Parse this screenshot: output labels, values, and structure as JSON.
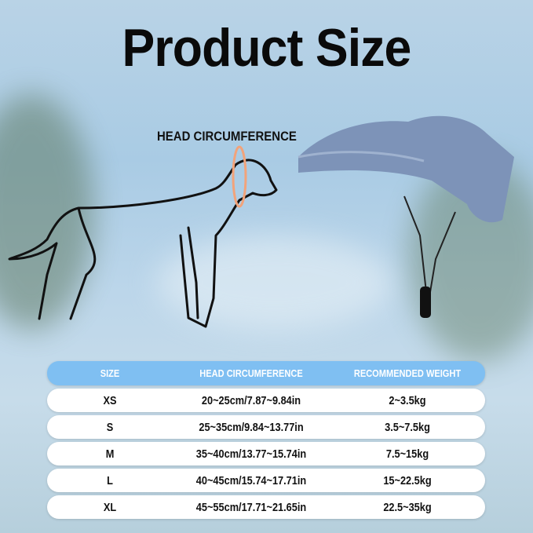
{
  "title": "Product Size",
  "diagram": {
    "head_label": "HEAD CIRCUMFERENCE"
  },
  "table": {
    "headers": [
      "SIZE",
      "HEAD CIRCUMFERENCE",
      "RECOMMENDED WEIGHT"
    ],
    "rows": [
      [
        "XS",
        "20~25cm/7.87~9.84in",
        "2~3.5kg"
      ],
      [
        "S",
        "25~35cm/9.84~13.77in",
        "3.5~7.5kg"
      ],
      [
        "M",
        "35~40cm/13.77~15.74in",
        "7.5~15kg"
      ],
      [
        "L",
        "40~45cm/15.74~17.71in",
        "15~22.5kg"
      ],
      [
        "XL",
        "45~55cm/17.71~21.65in",
        "22.5~35kg"
      ]
    ]
  },
  "colors": {
    "header": "#7fbff2",
    "cap": "#7d93b8",
    "measure_ring": "#f2a37a"
  }
}
